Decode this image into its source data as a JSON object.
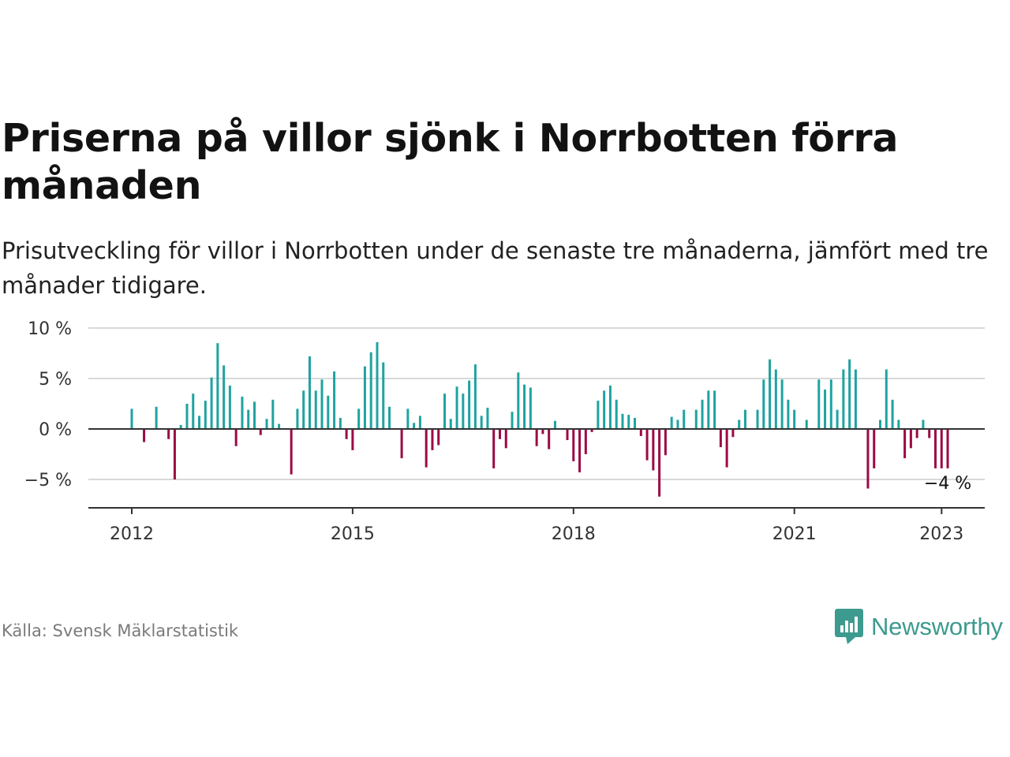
{
  "title": "Priserna på villor sjönk i Norrbotten förra månaden",
  "subtitle": "Prisutveckling för villor i Norrbotten under de senaste tre månaderna, jämfört med tre månader tidigare.",
  "source": "Källa: Svensk Mäklarstatistik",
  "brand": {
    "name": "Newsworthy",
    "logo_icon": "newsworthy-logo-icon"
  },
  "colors": {
    "positive": "#1fa3a0",
    "negative": "#9b0a45",
    "brand": "#3d9a8f",
    "grid": "#d9d9d9",
    "axis": "#333333"
  },
  "chart_data": {
    "type": "bar",
    "title": "Priserna på villor sjönk i Norrbotten förra månaden",
    "xlabel": "",
    "ylabel": "",
    "ylim": [
      -8,
      10
    ],
    "yticks": [
      {
        "value": 10,
        "label": "10 %"
      },
      {
        "value": 5,
        "label": "5 %"
      },
      {
        "value": 0,
        "label": "0 %"
      },
      {
        "value": -5,
        "label": "−5 %"
      }
    ],
    "xticks": [
      {
        "value": 2012,
        "label": "2012"
      },
      {
        "value": 2015,
        "label": "2015"
      },
      {
        "value": 2018,
        "label": "2018"
      },
      {
        "value": 2021,
        "label": "2021"
      },
      {
        "value": 2023,
        "label": "2023"
      }
    ],
    "x_start": 2012,
    "x_step": 0.08333,
    "values": [
      2.0,
      0,
      -1.3,
      0,
      2.2,
      0,
      -1.0,
      -5.0,
      0.4,
      2.5,
      3.5,
      1.3,
      2.8,
      5.1,
      8.5,
      6.3,
      4.3,
      -1.7,
      3.2,
      1.9,
      2.7,
      -0.6,
      1.0,
      2.9,
      0.5,
      0,
      -4.5,
      2.0,
      3.8,
      7.2,
      3.8,
      4.9,
      3.3,
      5.7,
      1.1,
      -1.0,
      -2.1,
      2.0,
      6.2,
      7.6,
      8.6,
      6.6,
      2.2,
      0,
      -2.9,
      2.0,
      0.6,
      1.3,
      -3.8,
      -2.1,
      -1.6,
      3.5,
      1.0,
      4.2,
      3.5,
      4.8,
      6.4,
      1.3,
      2.1,
      -3.9,
      -1.0,
      -1.9,
      1.7,
      5.6,
      4.4,
      4.1,
      -1.7,
      -0.5,
      -2.0,
      0.8,
      0,
      -1.1,
      -3.2,
      -4.3,
      -2.5,
      -0.3,
      2.8,
      3.8,
      4.3,
      2.9,
      1.5,
      1.4,
      1.1,
      -0.7,
      -3.1,
      -4.1,
      -6.7,
      -2.6,
      1.2,
      0.9,
      1.9,
      0,
      1.9,
      2.9,
      3.8,
      3.8,
      -1.8,
      -3.8,
      -0.8,
      0.9,
      1.9,
      0,
      1.9,
      4.9,
      6.9,
      5.9,
      4.9,
      2.9,
      1.9,
      0,
      0.9,
      0,
      4.9,
      3.9,
      4.9,
      1.9,
      5.9,
      6.9,
      5.9,
      0,
      -5.9,
      -3.9,
      0.9,
      5.9,
      2.9,
      0.9,
      -2.9,
      -1.9,
      -0.9,
      0.9,
      -0.9,
      -3.9,
      -3.9,
      -3.9
    ],
    "annotations": [
      {
        "text": "−4 %",
        "index": 133
      }
    ]
  }
}
